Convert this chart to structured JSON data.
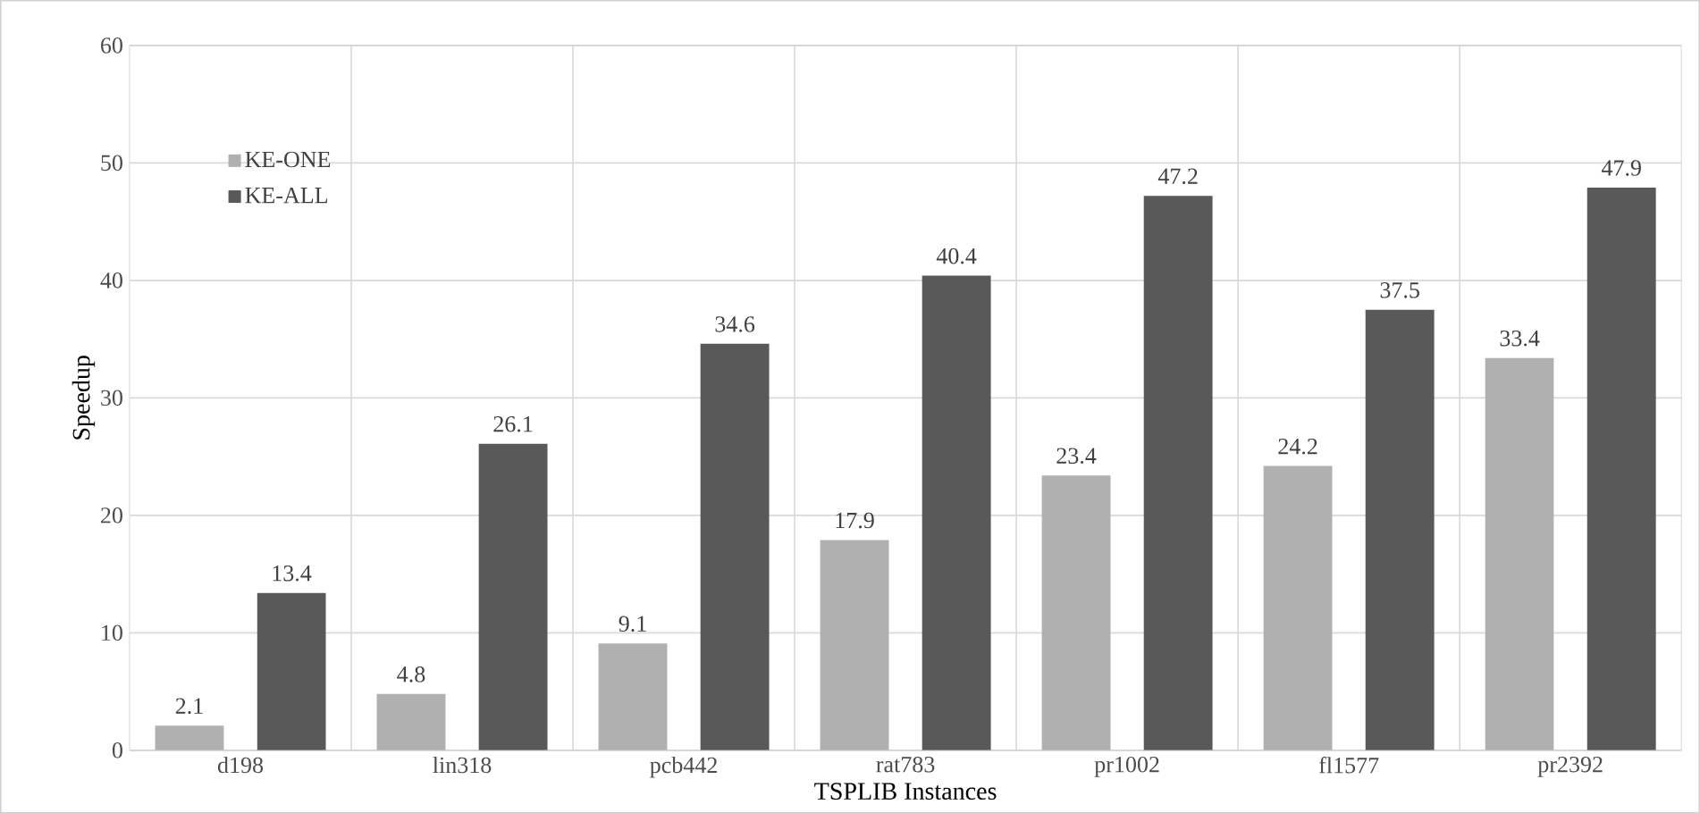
{
  "chart_data": {
    "type": "bar",
    "xlabel": "TSPLIB Instances",
    "ylabel": "Speedup",
    "categories": [
      "d198",
      "lin318",
      "pcb442",
      "rat783",
      "pr1002",
      "fl1577",
      "pr2392"
    ],
    "series": [
      {
        "name": "KE-ONE",
        "color": "#b0b0b0",
        "values": [
          2.1,
          4.8,
          9.1,
          17.9,
          23.4,
          24.2,
          33.4
        ]
      },
      {
        "name": "KE-ALL",
        "color": "#595959",
        "values": [
          13.4,
          26.1,
          34.6,
          40.4,
          47.2,
          37.5,
          47.9
        ]
      }
    ],
    "ylim": [
      0,
      60
    ],
    "yticks": [
      0,
      10,
      20,
      30,
      40,
      50,
      60
    ],
    "grid": true,
    "legend": "top left",
    "data_labels": true
  }
}
